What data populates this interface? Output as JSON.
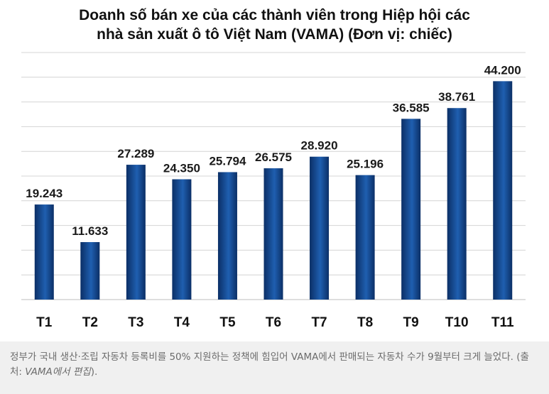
{
  "chart_data": {
    "type": "bar",
    "title_lines": [
      "Doanh số bán xe của các thành viên trong Hiệp hội các",
      "nhà sản xuất ô tô Việt Nam (VAMA) (Đơn vị: chiếc)"
    ],
    "categories": [
      "T1",
      "T2",
      "T3",
      "T4",
      "T5",
      "T6",
      "T7",
      "T8",
      "T9",
      "T10",
      "T11"
    ],
    "values": [
      19243,
      11633,
      27289,
      24350,
      25794,
      26575,
      28920,
      25196,
      36585,
      38761,
      44200
    ],
    "value_labels": [
      "19.243",
      "11.633",
      "27.289",
      "24.350",
      "25.794",
      "26.575",
      "28.920",
      "25.196",
      "36.585",
      "38.761",
      "44.200"
    ],
    "ylim": [
      0,
      50000
    ],
    "grid": true,
    "bar_color": "#1f5fb0",
    "bar_color_dark": "#0b2f66"
  },
  "caption": {
    "text": "정부가 국내 생산·조립 자동차 등록비를 50% 지원하는 정책에 힘입어 VAMA에서 판매되는 자동차 수가 9월부터 크게 늘었다. (출처: ",
    "source": "VAMA에서 편집",
    "suffix": ")."
  }
}
